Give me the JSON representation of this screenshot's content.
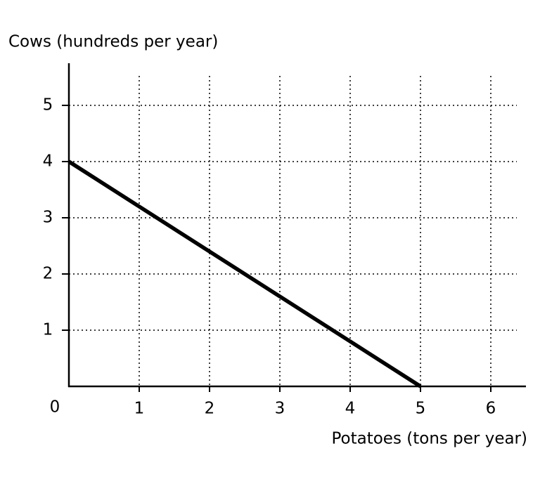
{
  "chart_data": {
    "type": "line",
    "x_label": "Potatoes (tons per year)",
    "y_label": "Cows (hundreds per year)",
    "x": [
      0,
      5
    ],
    "series": [
      {
        "color": "#000000",
        "values": [
          4,
          0
        ]
      }
    ],
    "xlim": [
      0,
      6.5
    ],
    "ylim": [
      0,
      5.75
    ],
    "xticks": [
      0,
      1,
      2,
      3,
      4,
      5,
      6
    ],
    "yticks": [
      1,
      2,
      3,
      4,
      5
    ],
    "grid": true
  }
}
